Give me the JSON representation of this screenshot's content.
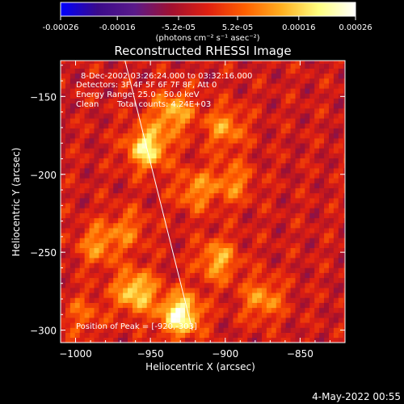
{
  "chart_data": {
    "type": "heatmap",
    "title": "Reconstructed RHESSI Image",
    "xlabel": "Heliocentric X (arcsec)",
    "ylabel": "Heliocentric Y (arcsec)",
    "xlim": [
      -1010,
      -820
    ],
    "ylim": [
      -308,
      -127
    ],
    "x_ticks": [
      -1000,
      -950,
      -900,
      -850
    ],
    "x_tick_labels": [
      "-1000",
      "-950",
      "-900",
      "-850"
    ],
    "y_ticks": [
      -150,
      -200,
      -250,
      -300
    ],
    "y_tick_labels": [
      "-150",
      "-200",
      "-250",
      "-300"
    ],
    "colorbar": {
      "range": [
        -0.00026,
        0.00026
      ],
      "ticks": [
        -0.00026,
        -0.00016,
        -5.2e-05,
        5.2e-05,
        0.00016,
        0.00026
      ],
      "tick_labels": [
        "-0.00026",
        "-0.00016",
        "-5.2e-05",
        "5.2e-05",
        "0.00016",
        "0.00026"
      ],
      "unit_label": "(photons cm⁻² s⁻¹ asec⁻²)",
      "colors": [
        "#0000ff",
        "#3a0a8a",
        "#5a1a8a",
        "#a01030",
        "#e02010",
        "#ff6000",
        "#ffb020",
        "#ffff80",
        "#ffffff"
      ]
    },
    "annotations": {
      "time_range": "8-Dec-2002 03:26:24.000 to 03:32:16.000",
      "detectors": "Detectors: 3F 4F 5F 6F 7F 8F, Att 0",
      "energy_range": "Energy Range: 25.0 - 50.0 keV",
      "method": "Clean",
      "counts": "Total counts: 4.24E+03"
    },
    "peak_label": "Position of Peak = [-920,-303]",
    "limb_line": [
      [
        -967,
        -127
      ],
      [
        -922,
        -300
      ]
    ],
    "hot_spots": [
      {
        "x": -952,
        "y": -183,
        "value": 0.00022
      },
      {
        "x": -935,
        "y": -160,
        "value": 0.00016
      },
      {
        "x": -900,
        "y": -170,
        "value": 0.00013
      },
      {
        "x": -920,
        "y": -210,
        "value": 0.00012
      },
      {
        "x": -895,
        "y": -205,
        "value": 0.00011
      },
      {
        "x": -985,
        "y": -245,
        "value": 0.00012
      },
      {
        "x": -960,
        "y": -275,
        "value": 0.0002
      },
      {
        "x": -930,
        "y": -290,
        "value": 0.00026
      },
      {
        "x": -905,
        "y": -255,
        "value": 0.00015
      },
      {
        "x": -875,
        "y": -280,
        "value": 0.00013
      },
      {
        "x": -965,
        "y": -235,
        "value": 9e-05
      },
      {
        "x": -995,
        "y": -290,
        "value": 8e-05
      }
    ]
  },
  "footer": {
    "timestamp": "4-May-2022 00:55"
  }
}
